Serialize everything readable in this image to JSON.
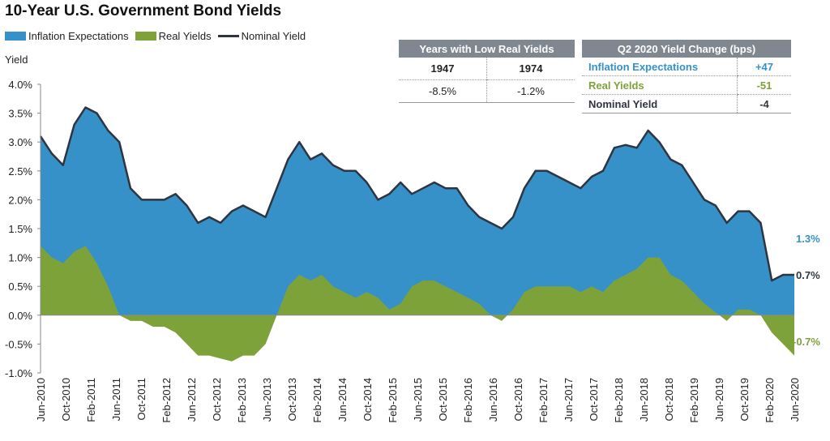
{
  "title": "10-Year U.S. Government Bond Yields",
  "legend": {
    "inflation": "Inflation Expectations",
    "real": "Real Yields",
    "nominal": "Nominal Yield"
  },
  "colors": {
    "inflation": "#3591c8",
    "real": "#7ea23a",
    "nominal": "#2f3540"
  },
  "table_low_real": {
    "header": "Years with Low Real Yields",
    "years": [
      "1947",
      "1974"
    ],
    "values": [
      "-8.5%",
      "-1.2%"
    ]
  },
  "table_change": {
    "header": "Q2 2020 Yield Change (bps)",
    "rows": [
      {
        "label": "Inflation Expectations",
        "value": "+47"
      },
      {
        "label": "Real Yields",
        "value": "-51"
      },
      {
        "label": "Nominal Yield",
        "value": "-4"
      }
    ]
  },
  "end_labels": {
    "inflation": "1.3%",
    "nominal": "0.7%",
    "real": "-0.7%"
  },
  "chart_data": {
    "type": "area",
    "title": "10-Year U.S. Government Bond Yields",
    "ylabel": "Yield",
    "ylim": [
      -1.0,
      4.0
    ],
    "y_ticks": [
      "-1.0%",
      "-0.5%",
      "0.0%",
      "0.5%",
      "1.0%",
      "1.5%",
      "2.0%",
      "2.5%",
      "3.0%",
      "3.5%",
      "4.0%"
    ],
    "x_ticks": [
      "Jun-2010",
      "Oct-2010",
      "Feb-2011",
      "Jun-2011",
      "Oct-2011",
      "Feb-2012",
      "Jun-2012",
      "Oct-2012",
      "Feb-2013",
      "Jun-2013",
      "Oct-2013",
      "Feb-2014",
      "Jun-2014",
      "Oct-2014",
      "Feb-2015",
      "Jun-2015",
      "Oct-2015",
      "Feb-2016",
      "Jun-2016",
      "Oct-2016",
      "Feb-2017",
      "Jun-2017",
      "Oct-2017",
      "Feb-2018",
      "Jun-2018",
      "Oct-2018",
      "Feb-2019",
      "Jun-2019",
      "Oct-2019",
      "Feb-2020",
      "Jun-2020"
    ],
    "series": [
      {
        "name": "Nominal Yield",
        "values": [
          3.1,
          2.8,
          2.6,
          3.3,
          3.6,
          3.5,
          3.2,
          3.0,
          2.2,
          2.0,
          2.0,
          2.0,
          2.1,
          1.9,
          1.6,
          1.7,
          1.6,
          1.8,
          1.9,
          1.8,
          1.7,
          2.2,
          2.7,
          3.0,
          2.7,
          2.8,
          2.6,
          2.5,
          2.5,
          2.3,
          2.0,
          2.1,
          2.3,
          2.1,
          2.2,
          2.3,
          2.2,
          2.2,
          1.9,
          1.7,
          1.6,
          1.5,
          1.7,
          2.2,
          2.5,
          2.5,
          2.4,
          2.3,
          2.2,
          2.4,
          2.5,
          2.9,
          2.95,
          2.9,
          3.2,
          3.0,
          2.7,
          2.6,
          2.3,
          2.0,
          1.9,
          1.6,
          1.8,
          1.8,
          1.6,
          0.6,
          0.7,
          0.7
        ]
      },
      {
        "name": "Real Yields",
        "values": [
          1.2,
          1.0,
          0.9,
          1.1,
          1.2,
          0.9,
          0.5,
          0.0,
          -0.1,
          -0.1,
          -0.2,
          -0.2,
          -0.3,
          -0.5,
          -0.7,
          -0.7,
          -0.75,
          -0.8,
          -0.7,
          -0.7,
          -0.5,
          0.0,
          0.5,
          0.7,
          0.6,
          0.7,
          0.5,
          0.4,
          0.3,
          0.4,
          0.3,
          0.1,
          0.2,
          0.5,
          0.6,
          0.6,
          0.5,
          0.4,
          0.3,
          0.2,
          0.0,
          -0.1,
          0.1,
          0.4,
          0.5,
          0.5,
          0.5,
          0.5,
          0.4,
          0.5,
          0.4,
          0.6,
          0.7,
          0.8,
          1.0,
          1.0,
          0.7,
          0.6,
          0.4,
          0.2,
          0.05,
          -0.1,
          0.1,
          0.1,
          0.0,
          -0.3,
          -0.5,
          -0.7
        ]
      }
    ],
    "x_start": "2010-06",
    "x_end": "2020-06",
    "end_values": {
      "Inflation Expectations": 1.3,
      "Nominal Yield": 0.7,
      "Real Yields": -0.7
    }
  }
}
